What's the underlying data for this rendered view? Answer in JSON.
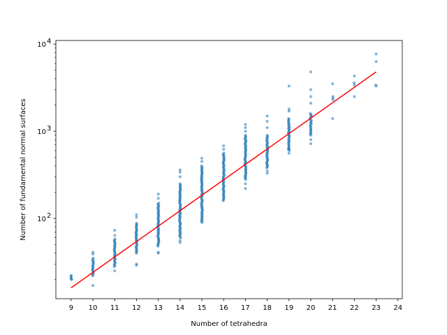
{
  "chart_data": {
    "type": "scatter",
    "title": "",
    "xlabel": "Number of tetrahedra",
    "ylabel": "Number of fundamental normal surfaces",
    "xlim": [
      8.3,
      24.2
    ],
    "ylim": [
      12,
      11000
    ],
    "yscale": "log",
    "xticks": [
      9,
      10,
      11,
      12,
      13,
      14,
      15,
      16,
      17,
      18,
      19,
      20,
      21,
      22,
      23,
      24
    ],
    "yticks": [
      {
        "value": 100,
        "base": "10",
        "exp": "2"
      },
      {
        "value": 1000,
        "base": "10",
        "exp": "3"
      },
      {
        "value": 10000,
        "base": "10",
        "exp": "4"
      }
    ],
    "grid": false,
    "point_color": "#1f77b4",
    "fit_color": "#ff0000",
    "columns": [
      {
        "x": 9,
        "min": 20,
        "max": 22,
        "extras": [
          20,
          22
        ]
      },
      {
        "x": 10,
        "min": 22,
        "max": 35,
        "extras": [
          17,
          39,
          41
        ]
      },
      {
        "x": 11,
        "min": 28,
        "max": 58,
        "extras": [
          25,
          64,
          73
        ]
      },
      {
        "x": 12,
        "min": 40,
        "max": 88,
        "extras": [
          29,
          30,
          103,
          110
        ]
      },
      {
        "x": 13,
        "min": 48,
        "max": 150,
        "extras": [
          40,
          41,
          170,
          190
        ]
      },
      {
        "x": 14,
        "min": 60,
        "max": 250,
        "extras": [
          53,
          56,
          300,
          340,
          360
        ]
      },
      {
        "x": 15,
        "min": 92,
        "max": 400,
        "extras": [
          90,
          450,
          490
        ]
      },
      {
        "x": 16,
        "min": 160,
        "max": 560,
        "extras": [
          620,
          680
        ]
      },
      {
        "x": 17,
        "min": 280,
        "max": 900,
        "extras": [
          220,
          250,
          1000,
          1100,
          1200
        ]
      },
      {
        "x": 18,
        "min": 380,
        "max": 900,
        "extras": [
          330,
          350,
          1100,
          1300,
          1500
        ]
      },
      {
        "x": 19,
        "min": 600,
        "max": 1400,
        "extras": [
          560,
          620,
          1700,
          1800,
          3300
        ]
      },
      {
        "x": 20,
        "min": 900,
        "max": 1600,
        "extras": [
          720,
          800,
          2100,
          2500,
          3000,
          4800
        ]
      },
      {
        "x": 21,
        "min": 2300,
        "max": 2500,
        "extras": [
          1400,
          3500
        ]
      },
      {
        "x": 22,
        "min": 3400,
        "max": 3600,
        "extras": [
          2500,
          4300
        ]
      },
      {
        "x": 23,
        "min": 3300,
        "max": 3400,
        "extras": [
          6300,
          7700
        ]
      }
    ],
    "fit_line": {
      "x": [
        9,
        23
      ],
      "y": [
        16,
        4800
      ]
    }
  }
}
